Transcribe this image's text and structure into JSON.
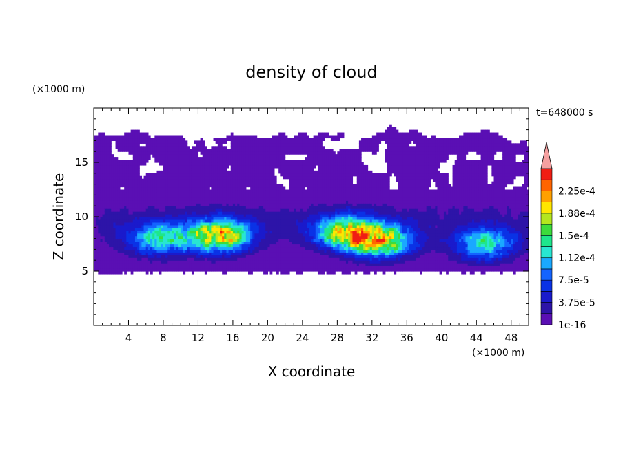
{
  "chart_data": {
    "type": "heatmap",
    "title": "density of cloud",
    "xlabel": "X coordinate",
    "ylabel": "Z coordinate",
    "x_unit_label": "(×1000 m)",
    "y_unit_label": "(×1000 m)",
    "time_label": "t=648000 s",
    "xlim": [
      0,
      50
    ],
    "ylim": [
      0,
      20
    ],
    "x_ticks": [
      4,
      8,
      12,
      16,
      20,
      24,
      28,
      32,
      36,
      40,
      44,
      48
    ],
    "x_tick_labels": [
      "4",
      "8",
      "12",
      "16",
      "20",
      "24",
      "28",
      "32",
      "36",
      "40",
      "44",
      "48"
    ],
    "y_ticks": [
      5,
      10,
      15
    ],
    "y_tick_labels": [
      "5",
      "10",
      "15"
    ],
    "colorbar": {
      "levels": [
        1e-16,
        1.875e-05,
        3.75e-05,
        5.625e-05,
        7.5e-05,
        9.375e-05,
        0.0001125,
        0.00013125,
        0.00015,
        0.00016875,
        0.0001875,
        0.00020625,
        0.000225,
        0.00024375
      ],
      "labels": [
        "1e-16",
        "3.75e-5",
        "7.5e-5",
        "1.12e-4",
        "1.5e-4",
        "1.88e-4",
        "2.25e-4"
      ],
      "label_levels": [
        1e-16,
        3.75e-05,
        7.5e-05,
        0.0001125,
        0.00015,
        0.0001875,
        0.000225
      ],
      "colors": [
        "#5a0fb4",
        "#2d14a8",
        "#1a1acc",
        "#0a32e6",
        "#1464ff",
        "#1aa8ff",
        "#28e6d2",
        "#1ee68c",
        "#3cdc3c",
        "#b4e61e",
        "#ffe600",
        "#ffa000",
        "#ff6400",
        "#f01e14"
      ],
      "overflow_color": "#f4a0a0"
    },
    "cloud_region": {
      "x_range": [
        0,
        50
      ],
      "base_z": 5,
      "top_z_range": [
        16,
        18.5
      ],
      "cores": [
        {
          "x": 14.5,
          "z": 8.3,
          "peak": 0.00019
        },
        {
          "x": 29,
          "z": 8.6,
          "peak": 0.00016
        },
        {
          "x": 33,
          "z": 7.8,
          "peak": 0.00017
        },
        {
          "x": 7.5,
          "z": 8,
          "peak": 0.00012
        },
        {
          "x": 45,
          "z": 7.5,
          "peak": 0.00012
        }
      ]
    }
  }
}
